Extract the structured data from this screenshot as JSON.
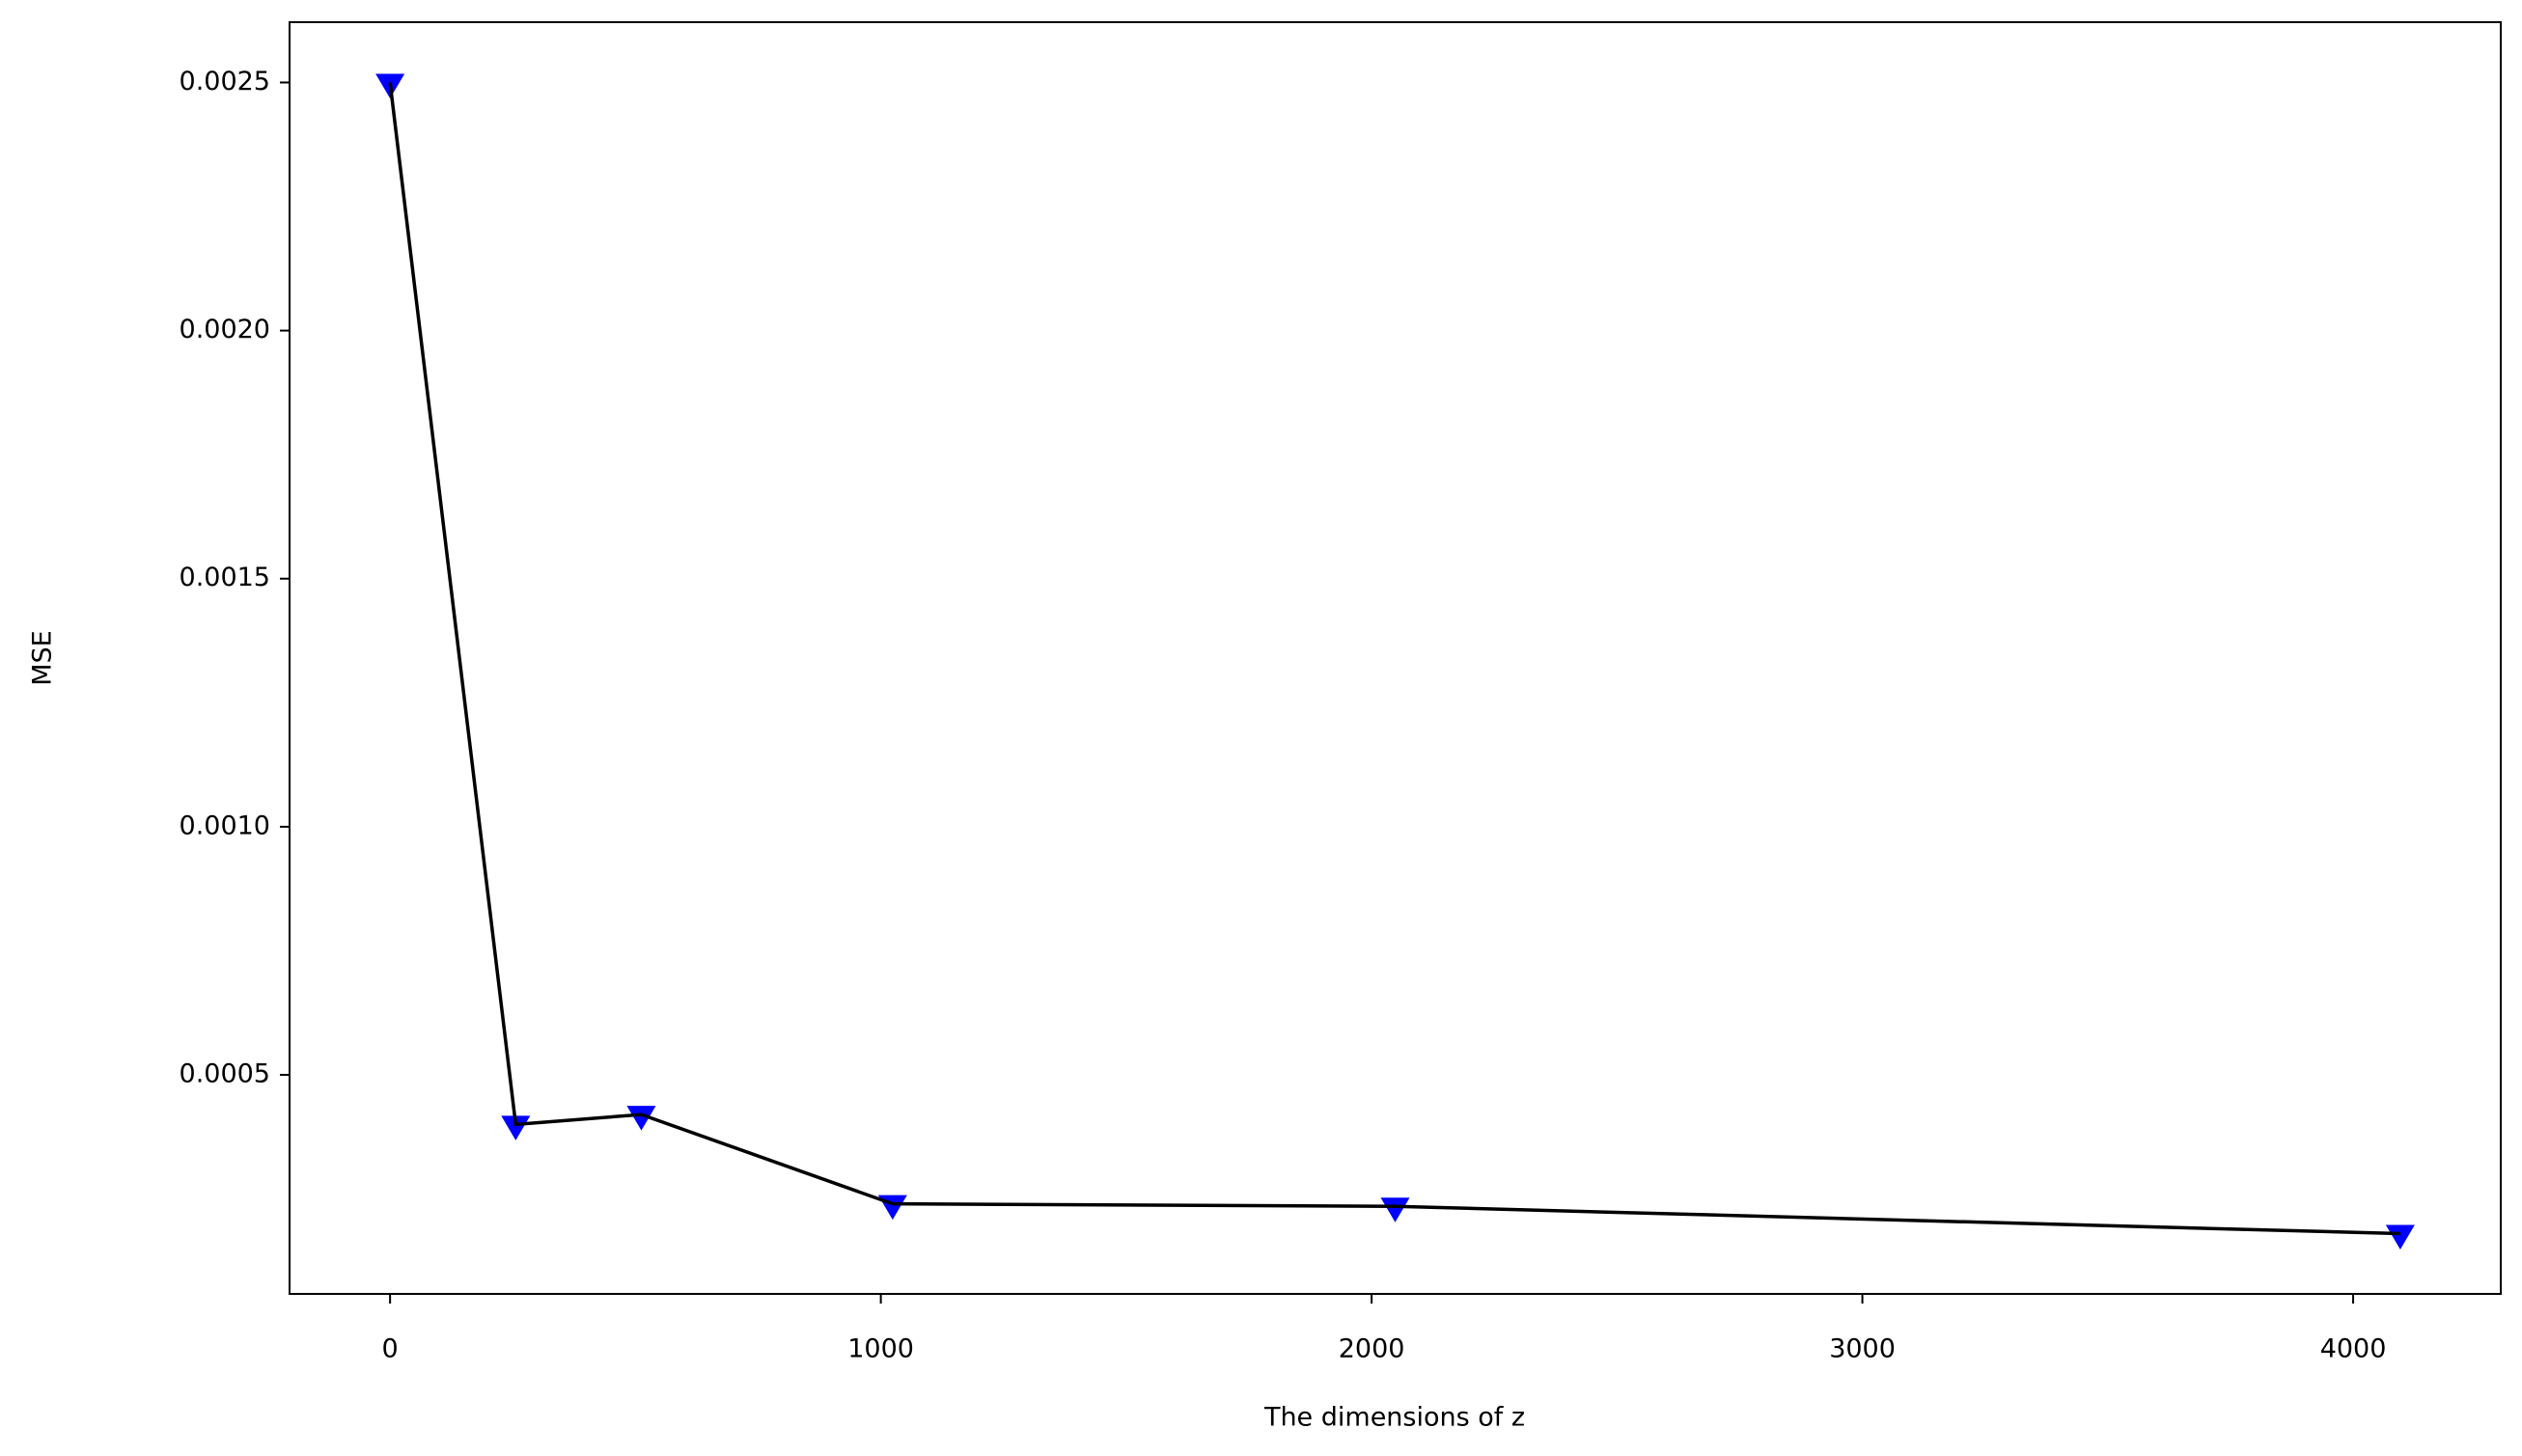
{
  "chart_data": {
    "type": "line",
    "xlabel": "The dimensions of z",
    "ylabel": "MSE",
    "x": [
      0,
      256,
      512,
      1024,
      2048,
      4096
    ],
    "series": [
      {
        "color": "#000000",
        "marker_color": "#0000ff",
        "values": [
          0.0025,
          0.0004,
          0.00042,
          0.00024,
          0.000235,
          0.00018
        ]
      }
    ],
    "xlim": [
      -204.8,
      4300.8
    ],
    "xticks": [
      0,
      1000,
      2000,
      3000,
      4000
    ],
    "ylim": [
      5.85e-05,
      0.0026215
    ],
    "yticks": [
      0.0005,
      {
        "value": 0.001,
        "label": "0.0010"
      },
      0.0015,
      {
        "value": 0.002,
        "label": "0.0020"
      },
      0.0025
    ],
    "grid": false
  }
}
